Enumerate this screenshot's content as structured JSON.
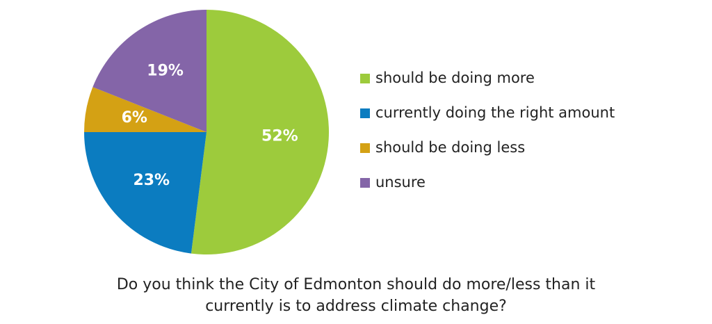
{
  "chart_data": {
    "type": "pie",
    "title": "Do you think the City of Edmonton should do more/less than it currently is to address climate change?",
    "categories": [
      "should be doing more",
      "currently doing the right amount",
      "should be doing less",
      "unsure"
    ],
    "values": [
      52,
      23,
      6,
      19
    ],
    "value_labels": [
      "52%",
      "23%",
      "6%",
      "19%"
    ],
    "colors": [
      "#9dcb3c",
      "#0b7cc0",
      "#d4a114",
      "#8465a8"
    ],
    "legend": "right"
  }
}
